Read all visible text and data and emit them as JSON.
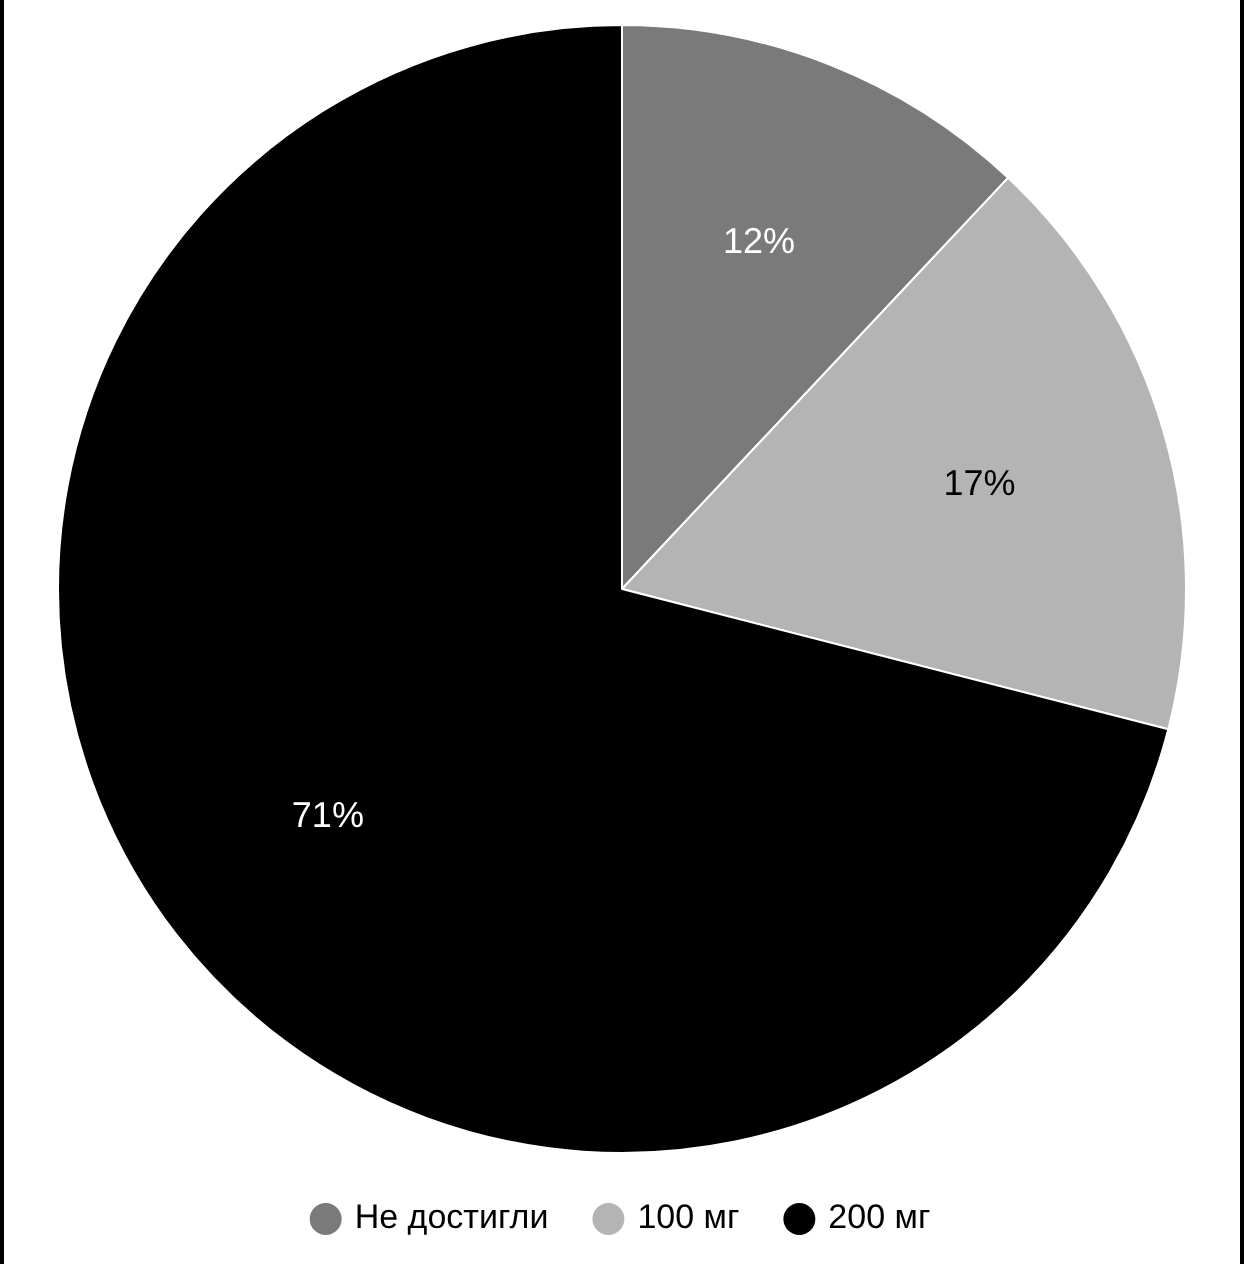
{
  "chart_data": {
    "type": "pie",
    "categories": [
      "Не достигли",
      "100 мг",
      "200 мг"
    ],
    "values": [
      12,
      17,
      71
    ],
    "colors": [
      "#7a7a7a",
      "#b4b4b4",
      "#000000"
    ],
    "value_labels": [
      "12%",
      "17%",
      "71%"
    ],
    "legend": "bottom"
  }
}
